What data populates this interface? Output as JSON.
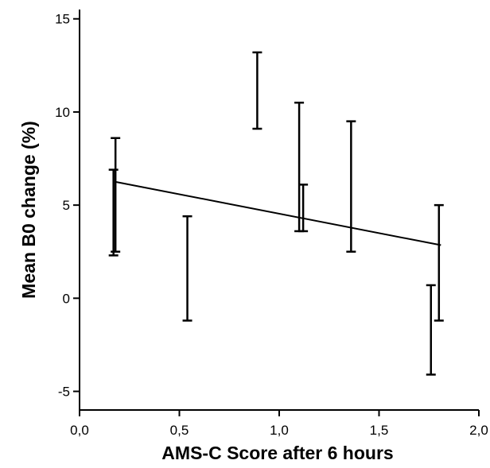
{
  "chart_data": {
    "type": "scatter",
    "title": "",
    "xlabel": "AMS-C Score after 6 hours",
    "ylabel": "Mean B0 change (%)",
    "xlim": [
      0.0,
      2.0
    ],
    "ylim": [
      -6,
      15.5
    ],
    "x_ticks": [
      0.0,
      0.5,
      1.0,
      1.5,
      2.0
    ],
    "x_tick_labels": [
      "0,0",
      "0,5",
      "1,0",
      "1,5",
      "2,0"
    ],
    "y_ticks": [
      -5,
      0,
      5,
      10,
      15
    ],
    "y_tick_labels": [
      "-5",
      "0",
      "5",
      "10",
      "15"
    ],
    "grid": false,
    "error_bars": [
      {
        "x": 0.17,
        "low": 2.3,
        "high": 6.9
      },
      {
        "x": 0.18,
        "low": 2.5,
        "high": 8.6
      },
      {
        "x": 0.54,
        "low": -1.2,
        "high": 4.4
      },
      {
        "x": 0.89,
        "low": 9.1,
        "high": 13.2
      },
      {
        "x": 1.1,
        "low": 3.6,
        "high": 10.5
      },
      {
        "x": 1.12,
        "low": 3.6,
        "high": 6.1
      },
      {
        "x": 1.36,
        "low": 2.5,
        "high": 9.5
      },
      {
        "x": 1.76,
        "low": -4.1,
        "high": 0.7
      },
      {
        "x": 1.8,
        "low": -1.2,
        "high": 5.0
      }
    ],
    "fit_line": {
      "x": [
        0.18,
        1.81
      ],
      "y": [
        6.25,
        2.85
      ]
    },
    "color": "#000000"
  }
}
